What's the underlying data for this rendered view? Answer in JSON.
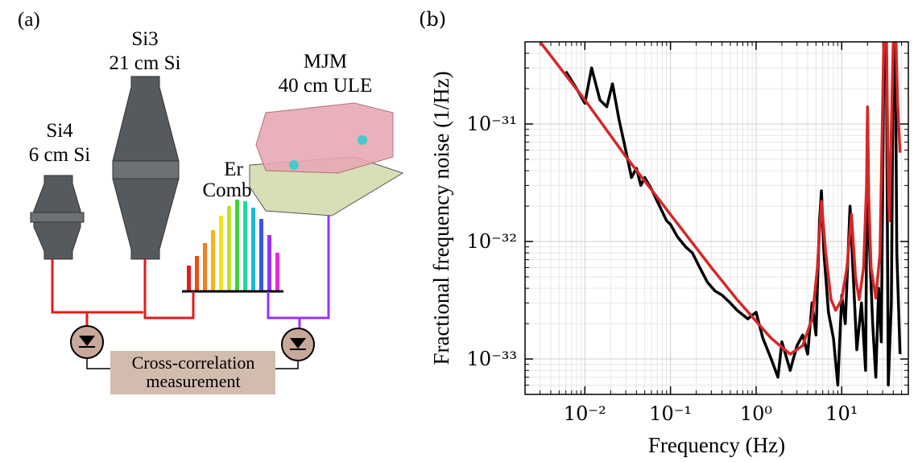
{
  "panel_a": {
    "label": "(a)",
    "si3": {
      "name": "Si3",
      "size": "21 cm Si"
    },
    "si4": {
      "name": "Si4",
      "size": "6 cm Si"
    },
    "mjm": {
      "name": "MJM",
      "size": "40 cm ULE"
    },
    "comb": {
      "line1": "Er",
      "line2": "Comb"
    },
    "box": {
      "line1": "Cross-correlation",
      "line2": "measurement"
    }
  },
  "chart_data": {
    "type": "line",
    "panel_label": "(b)",
    "xlabel": "Frequency (Hz)",
    "ylabel": "Fractional frequency noise (1/Hz)",
    "xscale": "log",
    "yscale": "log",
    "grid": true,
    "xlim": [
      0.002,
      60
    ],
    "ylim": [
      5e-34,
      5e-31
    ],
    "xticks": [
      {
        "value": 0.01,
        "label": "10⁻²"
      },
      {
        "value": 0.1,
        "label": "10⁻¹"
      },
      {
        "value": 1,
        "label": "10⁰"
      },
      {
        "value": 10,
        "label": "10¹"
      }
    ],
    "yticks": [
      {
        "value": 1e-33,
        "label": "10⁻³³"
      },
      {
        "value": 1e-32,
        "label": "10⁻³²"
      },
      {
        "value": 1e-31,
        "label": "10⁻³¹"
      }
    ],
    "xminorticks": [
      0.003,
      0.004,
      0.005,
      0.006,
      0.007,
      0.008,
      0.009,
      0.02,
      0.03,
      0.04,
      0.05,
      0.06,
      0.07,
      0.08,
      0.09,
      0.2,
      0.3,
      0.4,
      0.5,
      0.6,
      0.7,
      0.8,
      0.9,
      2,
      3,
      4,
      5,
      6,
      7,
      8,
      9,
      20,
      30,
      40,
      50
    ],
    "yminorticks": [
      6e-34,
      7e-34,
      8e-34,
      9e-34,
      2e-33,
      3e-33,
      4e-33,
      5e-33,
      6e-33,
      7e-33,
      8e-33,
      9e-33,
      2e-32,
      3e-32,
      4e-32,
      5e-32,
      6e-32,
      7e-32,
      8e-32,
      9e-32,
      2e-31,
      3e-31,
      4e-31
    ],
    "series": [
      {
        "color": "#000000",
        "x": [
          0.006,
          0.008,
          0.01,
          0.012,
          0.015,
          0.018,
          0.021,
          0.025,
          0.03,
          0.035,
          0.04,
          0.045,
          0.05,
          0.06,
          0.07,
          0.08,
          0.09,
          0.1,
          0.12,
          0.15,
          0.18,
          0.22,
          0.27,
          0.33,
          0.4,
          0.5,
          0.6,
          0.8,
          1.0,
          1.2,
          1.5,
          1.8,
          2.0,
          2.5,
          3.0,
          3.5,
          4.0,
          4.5,
          5.0,
          5.5,
          5.8,
          6.2,
          7.0,
          8.0,
          9.0,
          10,
          11,
          12.5,
          13.5,
          15,
          17,
          19,
          20,
          21,
          23,
          25,
          27,
          29,
          31,
          33,
          35,
          38,
          40,
          42,
          44,
          46,
          48
        ],
        "values": [
          2.8e-31,
          2e-31,
          1.5e-31,
          3e-31,
          1.6e-31,
          1.4e-31,
          2.2e-31,
          1.1e-31,
          6e-32,
          3.5e-32,
          4.2e-32,
          3e-32,
          3.5e-32,
          2.8e-32,
          2.2e-32,
          1.8e-32,
          1.5e-32,
          1.4e-32,
          1.1e-32,
          9e-33,
          8e-33,
          6e-33,
          4.5e-33,
          3.8e-33,
          3.5e-33,
          3e-33,
          2.6e-33,
          2.2e-33,
          2.5e-33,
          1.5e-33,
          1e-33,
          7e-34,
          1.4e-33,
          8e-34,
          1.3e-33,
          1.6e-33,
          1.1e-33,
          3e-33,
          1.6e-33,
          1.5e-32,
          2.7e-32,
          8e-33,
          2.5e-33,
          1.5e-33,
          6e-34,
          3.5e-33,
          2e-33,
          2e-32,
          6e-33,
          1.2e-33,
          3e-33,
          8e-34,
          1.3e-31,
          1e-32,
          2e-33,
          7e-34,
          4e-33,
          1.4e-33,
          3e-31,
          1e-30,
          6e-34,
          3e-33,
          4e-31,
          1e-30,
          8e-33,
          3e-33,
          1.1e-33
        ]
      },
      {
        "color": "#d62728",
        "x": [
          0.003,
          0.01,
          0.03,
          0.1,
          0.3,
          0.6,
          1,
          1.5,
          2.5,
          3.5,
          4.5,
          5.2,
          5.8,
          6.5,
          7.5,
          8.5,
          10,
          11.5,
          13,
          14.5,
          16,
          18,
          19.5,
          20,
          20.5,
          22,
          25,
          28,
          31,
          33,
          35,
          36,
          40,
          42,
          45,
          48
        ],
        "values": [
          5e-31,
          1.6e-31,
          5.3e-32,
          1.7e-32,
          6e-33,
          3.2e-33,
          2.1e-33,
          1.5e-33,
          1.1e-33,
          1.3e-33,
          2.2e-33,
          6e-33,
          2.2e-32,
          8e-33,
          3.2e-33,
          2.6e-33,
          3.2e-33,
          6e-33,
          1.7e-32,
          5e-33,
          3.2e-33,
          6e-33,
          3e-32,
          1.4e-31,
          3e-32,
          6e-33,
          3.3e-33,
          8e-33,
          5e-31,
          1e-30,
          3e-32,
          1.5e-32,
          5e-31,
          1e-30,
          1.5e-31,
          5.7e-32
        ]
      }
    ]
  }
}
